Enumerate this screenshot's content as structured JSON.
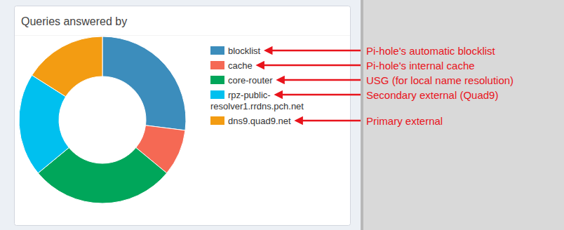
{
  "chart_data": {
    "type": "donut",
    "title": "Queries answered by",
    "categories": [
      "blocklist",
      "cache",
      "core-router",
      "rpz-public-resolver1.rrdns.pch.net",
      "dns9.quad9.net"
    ],
    "values": [
      27,
      9,
      28,
      20,
      16
    ],
    "colors": [
      "#3c8dbc",
      "#f56954",
      "#00a65a",
      "#00c0ef",
      "#f39c12"
    ],
    "legend": "right",
    "annotations": [
      "Pi-hole's automatic blocklist",
      "Pi-hole's internal cache",
      "USG (for local name resolution)",
      "Secondary external (Quad9)",
      "Primary external"
    ]
  }
}
